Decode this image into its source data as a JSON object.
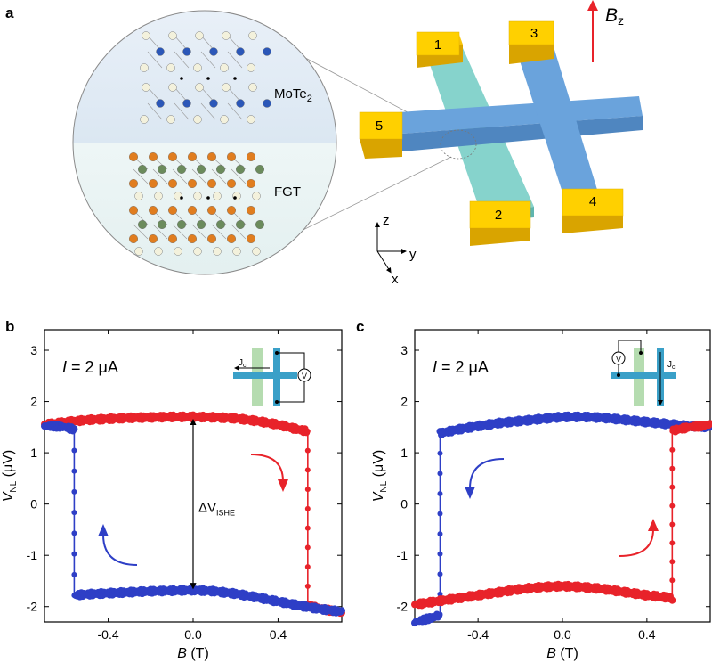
{
  "panel_a": {
    "label": "a",
    "layer_top": "MoTe",
    "layer_top_sub": "2",
    "layer_bottom": "FGT",
    "field_label": "B",
    "field_sub": "z",
    "contacts": [
      "1",
      "2",
      "3",
      "4",
      "5"
    ],
    "axes": {
      "z": "z",
      "y": "y",
      "x": "x"
    }
  },
  "chart_data": [
    {
      "type": "scatter",
      "panel_label": "b",
      "annotation_current": "I = 2 μA",
      "annotation_current_var": "I",
      "annotation_current_rest": " = 2 μA",
      "delta_label": "ΔV",
      "delta_sub": "ISHE",
      "inset_current": "J",
      "inset_current_sub": "c",
      "inset_meter": "V",
      "xlabel_var": "B",
      "xlabel_unit": " (T)",
      "ylabel_var": "V",
      "ylabel_sub": "NL",
      "ylabel_unit": " (μV)",
      "xlim": [
        -0.7,
        0.7
      ],
      "ylim": [
        -2.3,
        3.4
      ],
      "xticks": [
        -0.4,
        0.0,
        0.4
      ],
      "xtick_labels": [
        "-0.4",
        "0.0",
        "0.4"
      ],
      "yticks": [
        -2,
        -1,
        0,
        1,
        2,
        3
      ],
      "ytick_labels": [
        "-2",
        "-1",
        "0",
        "1",
        "2",
        "3"
      ],
      "colors": {
        "sweep_down": "#e8232a",
        "sweep_up": "#2e3fc6"
      },
      "series": [
        {
          "color": "#e8232a",
          "direction": "down",
          "x": [
            -0.7,
            -0.6,
            -0.5,
            -0.4,
            -0.3,
            -0.2,
            -0.1,
            0.0,
            0.1,
            0.2,
            0.3,
            0.4,
            0.5,
            0.54,
            0.54,
            0.56,
            0.6,
            0.65,
            0.7
          ],
          "y": [
            1.55,
            1.6,
            1.64,
            1.66,
            1.68,
            1.69,
            1.7,
            1.7,
            1.69,
            1.67,
            1.62,
            1.55,
            1.45,
            1.42,
            -1.98,
            -2.0,
            -2.04,
            -2.08,
            -2.12
          ]
        },
        {
          "color": "#2e3fc6",
          "direction": "up",
          "x": [
            0.7,
            0.6,
            0.5,
            0.4,
            0.3,
            0.2,
            0.1,
            0.0,
            -0.1,
            -0.2,
            -0.3,
            -0.4,
            -0.5,
            -0.56,
            -0.56,
            -0.6,
            -0.65,
            -0.7
          ],
          "y": [
            -2.1,
            -2.05,
            -1.98,
            -1.9,
            -1.82,
            -1.75,
            -1.7,
            -1.68,
            -1.69,
            -1.7,
            -1.72,
            -1.74,
            -1.76,
            -1.78,
            1.45,
            1.5,
            1.52,
            1.52
          ]
        }
      ]
    },
    {
      "type": "scatter",
      "panel_label": "c",
      "annotation_current": "I = 2 μA",
      "annotation_current_var": "I",
      "annotation_current_rest": " = 2 μA",
      "inset_current": "J",
      "inset_current_sub": "c",
      "inset_meter": "V",
      "xlabel_var": "B",
      "xlabel_unit": " (T)",
      "ylabel_var": "V",
      "ylabel_sub": "NL",
      "ylabel_unit": " (μV)",
      "xlim": [
        -0.7,
        0.7
      ],
      "ylim": [
        -2.3,
        3.4
      ],
      "xticks": [
        -0.4,
        0.0,
        0.4
      ],
      "xtick_labels": [
        "-0.4",
        "0.0",
        "0.4"
      ],
      "yticks": [
        -2,
        -1,
        0,
        1,
        2,
        3
      ],
      "ytick_labels": [
        "-2",
        "-1",
        "0",
        "1",
        "2",
        "3"
      ],
      "colors": {
        "sweep_down": "#2e3fc6",
        "sweep_up": "#e8232a"
      },
      "series": [
        {
          "color": "#2e3fc6",
          "direction": "down",
          "x": [
            -0.7,
            -0.65,
            -0.6,
            -0.58,
            -0.58,
            -0.5,
            -0.4,
            -0.3,
            -0.2,
            -0.1,
            0.0,
            0.1,
            0.2,
            0.3,
            0.4,
            0.5,
            0.6,
            0.7
          ],
          "y": [
            -2.3,
            -2.25,
            -2.2,
            -2.15,
            1.38,
            1.45,
            1.52,
            1.58,
            1.62,
            1.66,
            1.7,
            1.7,
            1.68,
            1.64,
            1.6,
            1.56,
            1.52,
            1.5
          ]
        },
        {
          "color": "#e8232a",
          "direction": "up",
          "x": [
            0.7,
            0.65,
            0.6,
            0.54,
            0.52,
            0.52,
            0.5,
            0.4,
            0.3,
            0.2,
            0.1,
            0.0,
            -0.1,
            -0.2,
            -0.3,
            -0.4,
            -0.5,
            -0.6,
            -0.7
          ],
          "y": [
            1.55,
            1.52,
            1.5,
            1.45,
            1.42,
            -1.85,
            -1.82,
            -1.78,
            -1.72,
            -1.66,
            -1.62,
            -1.6,
            -1.62,
            -1.66,
            -1.72,
            -1.78,
            -1.84,
            -1.9,
            -1.96
          ]
        }
      ]
    }
  ]
}
